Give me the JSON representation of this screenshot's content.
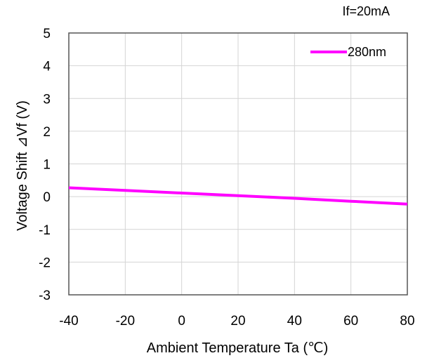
{
  "chart_data": {
    "type": "line",
    "annotation": "If=20mA",
    "xlabel": "Ambient Temperature Ta (℃)",
    "ylabel": "Voltage Shift ⊿Vf (V)",
    "xlim": [
      -40,
      80
    ],
    "ylim": [
      -3,
      5
    ],
    "xticks": [
      -40,
      -20,
      0,
      20,
      40,
      60,
      80
    ],
    "yticks": [
      -3,
      -2,
      -1,
      0,
      1,
      2,
      3,
      4,
      5
    ],
    "xtick_labels": [
      "-40",
      "-20",
      "0",
      "20",
      "40",
      "60",
      "80"
    ],
    "ytick_labels": [
      "-3",
      "-2",
      "-1",
      "0",
      "1",
      "2",
      "3",
      "4",
      "5"
    ],
    "grid": true,
    "legend_position": "top-right",
    "series": [
      {
        "name": "280nm",
        "color": "#ff00ff",
        "x": [
          -40,
          -20,
          0,
          20,
          40,
          60,
          80
        ],
        "y": [
          0.27,
          0.19,
          0.11,
          0.03,
          -0.05,
          -0.14,
          -0.23
        ]
      }
    ]
  }
}
